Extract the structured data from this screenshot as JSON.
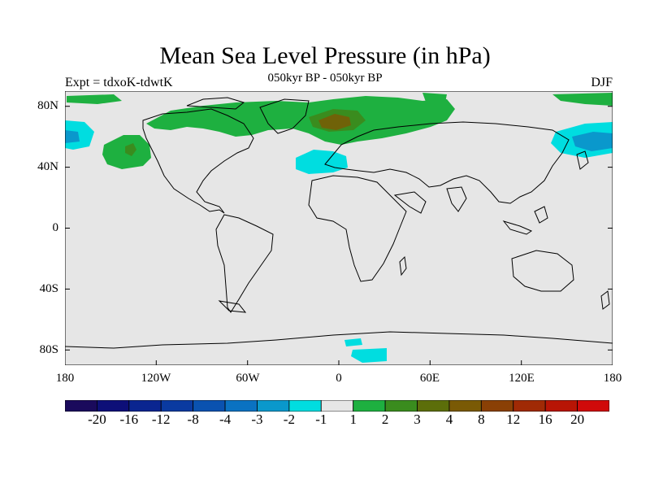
{
  "title": "Mean Sea Level Pressure (in hPa)",
  "subtitle": "050kyr BP - 050kyr BP",
  "left_label": "Expt = tdxoK-tdwtK",
  "right_label": "DJF",
  "lat_ticks": [
    "80N",
    "40N",
    "0",
    "40S",
    "80S"
  ],
  "lon_ticks": [
    "180",
    "120W",
    "60W",
    "0",
    "60E",
    "120E",
    "180"
  ],
  "colorbar": {
    "colors": [
      "#1a0a5c",
      "#0d0f78",
      "#0a2590",
      "#0a3aa0",
      "#0a52b0",
      "#0a72c2",
      "#0a98cc",
      "#00dde0",
      "#e6e6e6",
      "#1eb040",
      "#3a8c1e",
      "#5c6e0a",
      "#7a5a05",
      "#8a4005",
      "#a02a05",
      "#b81505",
      "#d00a0a"
    ],
    "labels": [
      "-20",
      "-16",
      "-12",
      "-8",
      "-4",
      "-3",
      "-2",
      "-1",
      "1",
      "2",
      "3",
      "4",
      "8",
      "12",
      "16",
      "20"
    ]
  },
  "colors": {
    "ocean_land_bg": "#e6e6e6",
    "pos_light": "#1eb040",
    "pos_medium": "#3a8c1e",
    "pos_strong": "#7a5a05",
    "neg_light": "#00dde0",
    "neg_medium": "#0a98cc"
  }
}
